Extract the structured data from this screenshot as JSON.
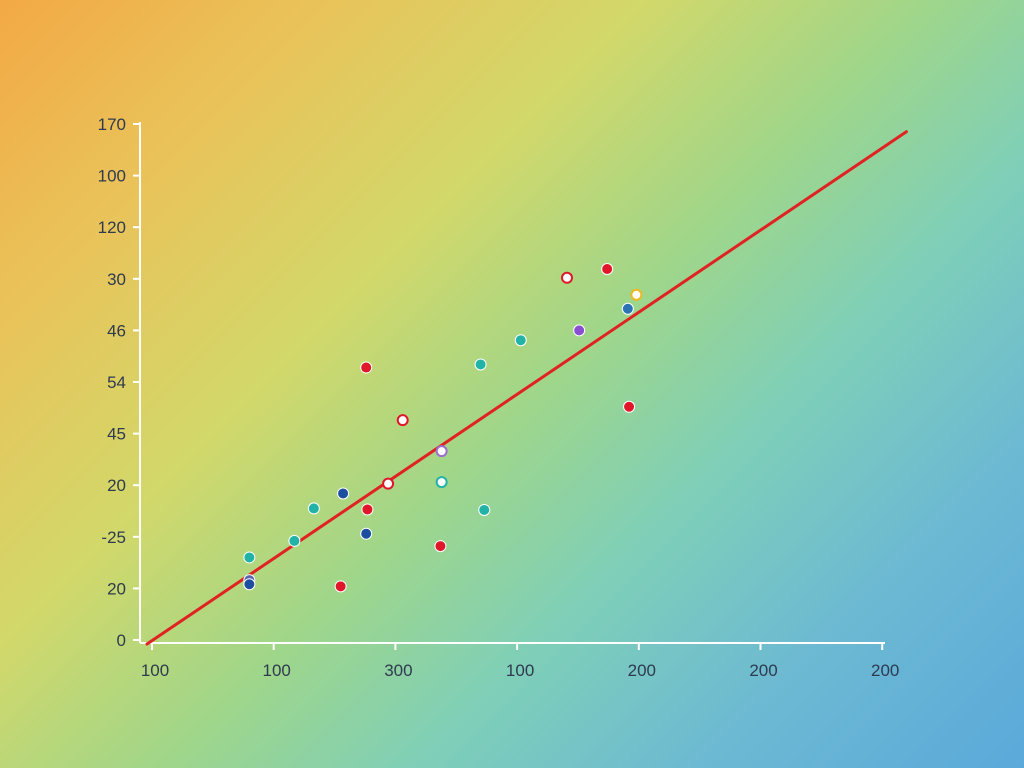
{
  "chart_data": {
    "type": "scatter",
    "title": "",
    "xlabel": "",
    "ylabel": "",
    "grid": false,
    "legend": "none",
    "xlim": [
      0,
      6.1
    ],
    "ylim": [
      0,
      10.1
    ],
    "x_ticks": [
      {
        "pos": 0,
        "label": "100"
      },
      {
        "pos": 1,
        "label": "100"
      },
      {
        "pos": 2,
        "label": "300"
      },
      {
        "pos": 3,
        "label": "100"
      },
      {
        "pos": 4,
        "label": "200"
      },
      {
        "pos": 5,
        "label": "200"
      },
      {
        "pos": 6,
        "label": "200"
      }
    ],
    "y_ticks": [
      {
        "pos": 0,
        "label": "0"
      },
      {
        "pos": 1,
        "label": "20"
      },
      {
        "pos": 2,
        "label": "-25"
      },
      {
        "pos": 3,
        "label": "20"
      },
      {
        "pos": 4,
        "label": "45"
      },
      {
        "pos": 5,
        "label": "54"
      },
      {
        "pos": 6,
        "label": "46"
      },
      {
        "pos": 7,
        "label": "30"
      },
      {
        "pos": 8,
        "label": "120"
      },
      {
        "pos": 9,
        "label": "100"
      },
      {
        "pos": 10,
        "label": "170"
      }
    ],
    "points": [
      {
        "x": 0.8,
        "y": 1.6,
        "color": "#22b3a6",
        "fill": "solid"
      },
      {
        "x": 0.8,
        "y": 1.16,
        "color": "#5a63b0",
        "fill": "solid"
      },
      {
        "x": 0.8,
        "y": 1.08,
        "color": "#1d4fa0",
        "fill": "solid"
      },
      {
        "x": 1.17,
        "y": 1.92,
        "color": "#22b3a6",
        "fill": "solid"
      },
      {
        "x": 1.33,
        "y": 2.55,
        "color": "#22b3a6",
        "fill": "solid"
      },
      {
        "x": 1.57,
        "y": 2.84,
        "color": "#1d4fa0",
        "fill": "solid"
      },
      {
        "x": 1.55,
        "y": 1.04,
        "color": "#e0172a",
        "fill": "solid"
      },
      {
        "x": 1.76,
        "y": 5.28,
        "color": "#e0172a",
        "fill": "solid"
      },
      {
        "x": 1.77,
        "y": 2.53,
        "color": "#e0172a",
        "fill": "solid"
      },
      {
        "x": 1.76,
        "y": 2.06,
        "color": "#1d4fa0",
        "fill": "solid"
      },
      {
        "x": 1.94,
        "y": 3.03,
        "color": "#e0172a",
        "fill": "hollow"
      },
      {
        "x": 2.06,
        "y": 4.26,
        "color": "#e0172a",
        "fill": "hollow"
      },
      {
        "x": 2.38,
        "y": 3.66,
        "color": "#9a6fd0",
        "fill": "hollow"
      },
      {
        "x": 2.38,
        "y": 3.06,
        "color": "#22b3a6",
        "fill": "hollow"
      },
      {
        "x": 2.37,
        "y": 1.82,
        "color": "#e0172a",
        "fill": "solid"
      },
      {
        "x": 2.7,
        "y": 5.34,
        "color": "#22b3a6",
        "fill": "solid"
      },
      {
        "x": 2.73,
        "y": 2.52,
        "color": "#22b3a6",
        "fill": "solid"
      },
      {
        "x": 3.03,
        "y": 5.81,
        "color": "#22b3a6",
        "fill": "solid"
      },
      {
        "x": 3.41,
        "y": 7.02,
        "color": "#e0172a",
        "fill": "hollow"
      },
      {
        "x": 3.51,
        "y": 6.0,
        "color": "#8a4fd0",
        "fill": "solid"
      },
      {
        "x": 3.74,
        "y": 7.19,
        "color": "#e0172a",
        "fill": "solid"
      },
      {
        "x": 3.91,
        "y": 6.42,
        "color": "#2a74b5",
        "fill": "solid"
      },
      {
        "x": 3.98,
        "y": 6.69,
        "color": "#f0b820",
        "fill": "hollow"
      },
      {
        "x": 3.92,
        "y": 4.52,
        "color": "#e0172a",
        "fill": "solid"
      }
    ],
    "trendline": {
      "x": [
        0.0,
        6.1
      ],
      "y": [
        0.0,
        9.85
      ],
      "color": "#e02222"
    }
  }
}
